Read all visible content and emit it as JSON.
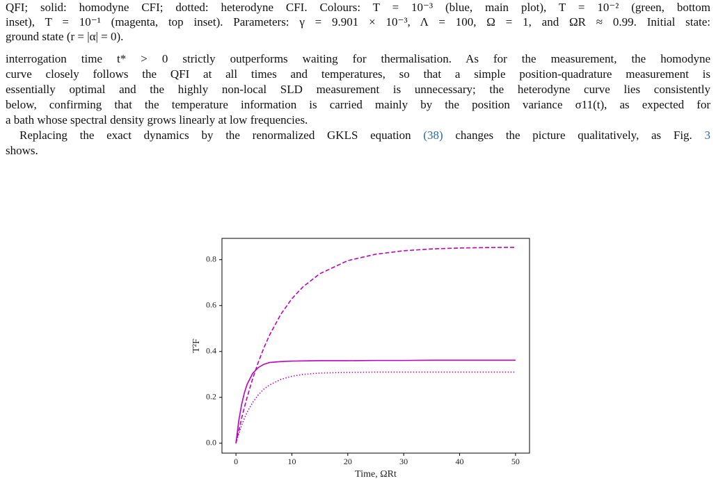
{
  "caption": {
    "lines": [
      "QFI; solid: homodyne CFI; dotted: heterodyne CFI. Colours: T = 10⁻³ (blue, main plot), T = 10⁻² (green, bottom",
      "inset), T = 10⁻¹ (magenta, top inset). Parameters: γ = 9.901 × 10⁻³, Λ = 100, Ω = 1, and ΩR ≈ 0.99. Initial state:",
      "ground state (r = |α| = 0)."
    ]
  },
  "paragraphs": [
    {
      "indent": false,
      "lines": [
        "interrogation time t* > 0 strictly outperforms waiting for thermalisation. As for the measurement, the homodyne",
        "curve closely follows the QFI at all times and temperatures, so that a simple position-quadrature measurement is",
        "essentially optimal and the highly non-local SLD measurement is unnecessary; the heterodyne curve lies consistently",
        "below, confirming that the temperature information is carried mainly by the position variance σ11(t), as expected for",
        "a bath whose spectral density grows linearly at low frequencies."
      ]
    },
    {
      "indent": true,
      "lines": [
        {
          "segments": [
            {
              "text": "Replacing the exact dynamics by the renormalized GKLS equation "
            },
            {
              "text": "(38)",
              "link": true
            },
            {
              "text": " changes the picture qualitatively, as Fig. "
            },
            {
              "text": "3",
              "link": true
            }
          ]
        },
        "shows."
      ]
    }
  ],
  "chart_data": {
    "type": "line",
    "xlabel": "Time, ΩRt",
    "ylabel": "T²F",
    "xlim": [
      -2.5,
      52.5
    ],
    "ylim": [
      -0.043,
      0.893
    ],
    "xticks": [
      0,
      10,
      20,
      30,
      40,
      50
    ],
    "yticks": [
      {
        "value": 0,
        "label": "0.0"
      },
      0.2,
      0.4,
      0.6,
      0.8
    ],
    "x": [
      0,
      0.5,
      1,
      1.5,
      2,
      3,
      4,
      5,
      6,
      8,
      10,
      12,
      15,
      20,
      25,
      30,
      35,
      40,
      45,
      50
    ],
    "series": [
      {
        "color": "#bf00bf",
        "style": "dashed",
        "values": [
          0,
          0.055,
          0.107,
          0.155,
          0.2,
          0.282,
          0.353,
          0.416,
          0.471,
          0.561,
          0.63,
          0.682,
          0.739,
          0.796,
          0.824,
          0.839,
          0.847,
          0.851,
          0.853,
          0.854
        ]
      },
      {
        "color": "#bf00bf",
        "style": "solid",
        "values": [
          0,
          0.097,
          0.167,
          0.219,
          0.257,
          0.305,
          0.33,
          0.344,
          0.352,
          0.356,
          0.358,
          0.359,
          0.36,
          0.36,
          0.361,
          0.361,
          0.362,
          0.362,
          0.362,
          0.362
        ]
      },
      {
        "color": "#bf00bf",
        "style": "dotted",
        "values": [
          0,
          0.041,
          0.077,
          0.108,
          0.135,
          0.178,
          0.211,
          0.236,
          0.254,
          0.278,
          0.292,
          0.3,
          0.306,
          0.309,
          0.31,
          0.31,
          0.31,
          0.31,
          0.31,
          0.31
        ]
      }
    ]
  }
}
